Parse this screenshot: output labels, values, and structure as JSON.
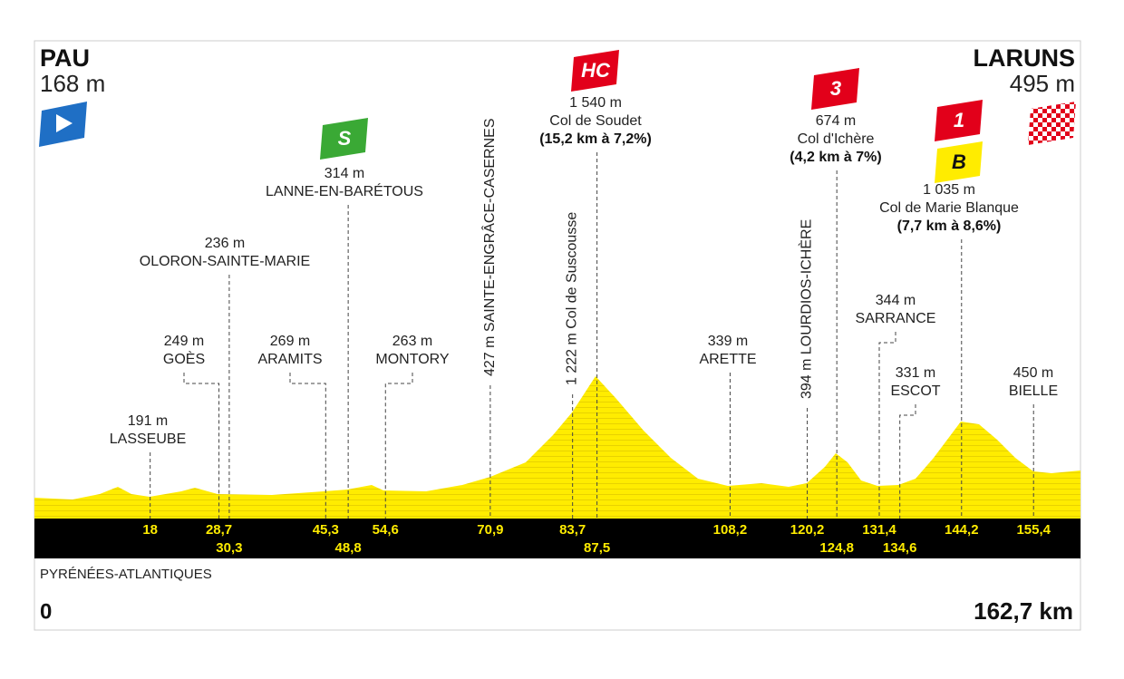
{
  "start": {
    "name": "PAU",
    "elevation": "168 m",
    "km": "0"
  },
  "finish": {
    "name": "LARUNS",
    "elevation": "495 m",
    "km": "162,7 km"
  },
  "region": "PYRÉNÉES-ATLANTIQUES",
  "waypoints": [
    {
      "elevation": "191 m",
      "name": "LASSEUBE",
      "km": "18"
    },
    {
      "elevation": "249 m",
      "name": "GOÈS",
      "km": "28,7"
    },
    {
      "elevation": "236 m",
      "name": "OLORON-SAINTE-MARIE",
      "km": "30,3"
    },
    {
      "elevation": "269 m",
      "name": "ARAMITS",
      "km": "45,3"
    },
    {
      "elevation": "314 m",
      "name": "LANNE-EN-BARÉTOUS",
      "km": "48,8",
      "badges": [
        "S"
      ]
    },
    {
      "elevation": "263 m",
      "name": "MONTORY",
      "km": "54,6"
    },
    {
      "elevation": "427 m",
      "name": "SAINTE-ENGRÂCE-CASERNES",
      "km": "70,9"
    },
    {
      "elevation": "1 222 m",
      "name": "Col de Suscousse",
      "km": "83,7"
    },
    {
      "elevation": "1 540 m",
      "name": "Col de Soudet",
      "detail": "(15,2 km à 7,2%)",
      "km": "87,5",
      "badges": [
        "HC"
      ]
    },
    {
      "elevation": "339 m",
      "name": "ARETTE",
      "km": "108,2"
    },
    {
      "elevation": "394 m",
      "name": "LOURDIOS-ICHÈRE",
      "km": "120,2"
    },
    {
      "elevation": "674 m",
      "name": "Col d'Ichère",
      "detail": "(4,2 km à 7%)",
      "km": "124,8",
      "badges": [
        "3"
      ]
    },
    {
      "elevation": "344 m",
      "name": "SARRANCE",
      "km": "131,4"
    },
    {
      "elevation": "331 m",
      "name": "ESCOT",
      "km": "134,6"
    },
    {
      "elevation": "1 035 m",
      "name": "Col de Marie Blanque",
      "detail": "(7,7 km à 8,6%)",
      "km": "144,2",
      "badges": [
        "1",
        "B"
      ]
    },
    {
      "elevation": "450 m",
      "name": "BIELLE",
      "km": "155,4"
    }
  ]
}
